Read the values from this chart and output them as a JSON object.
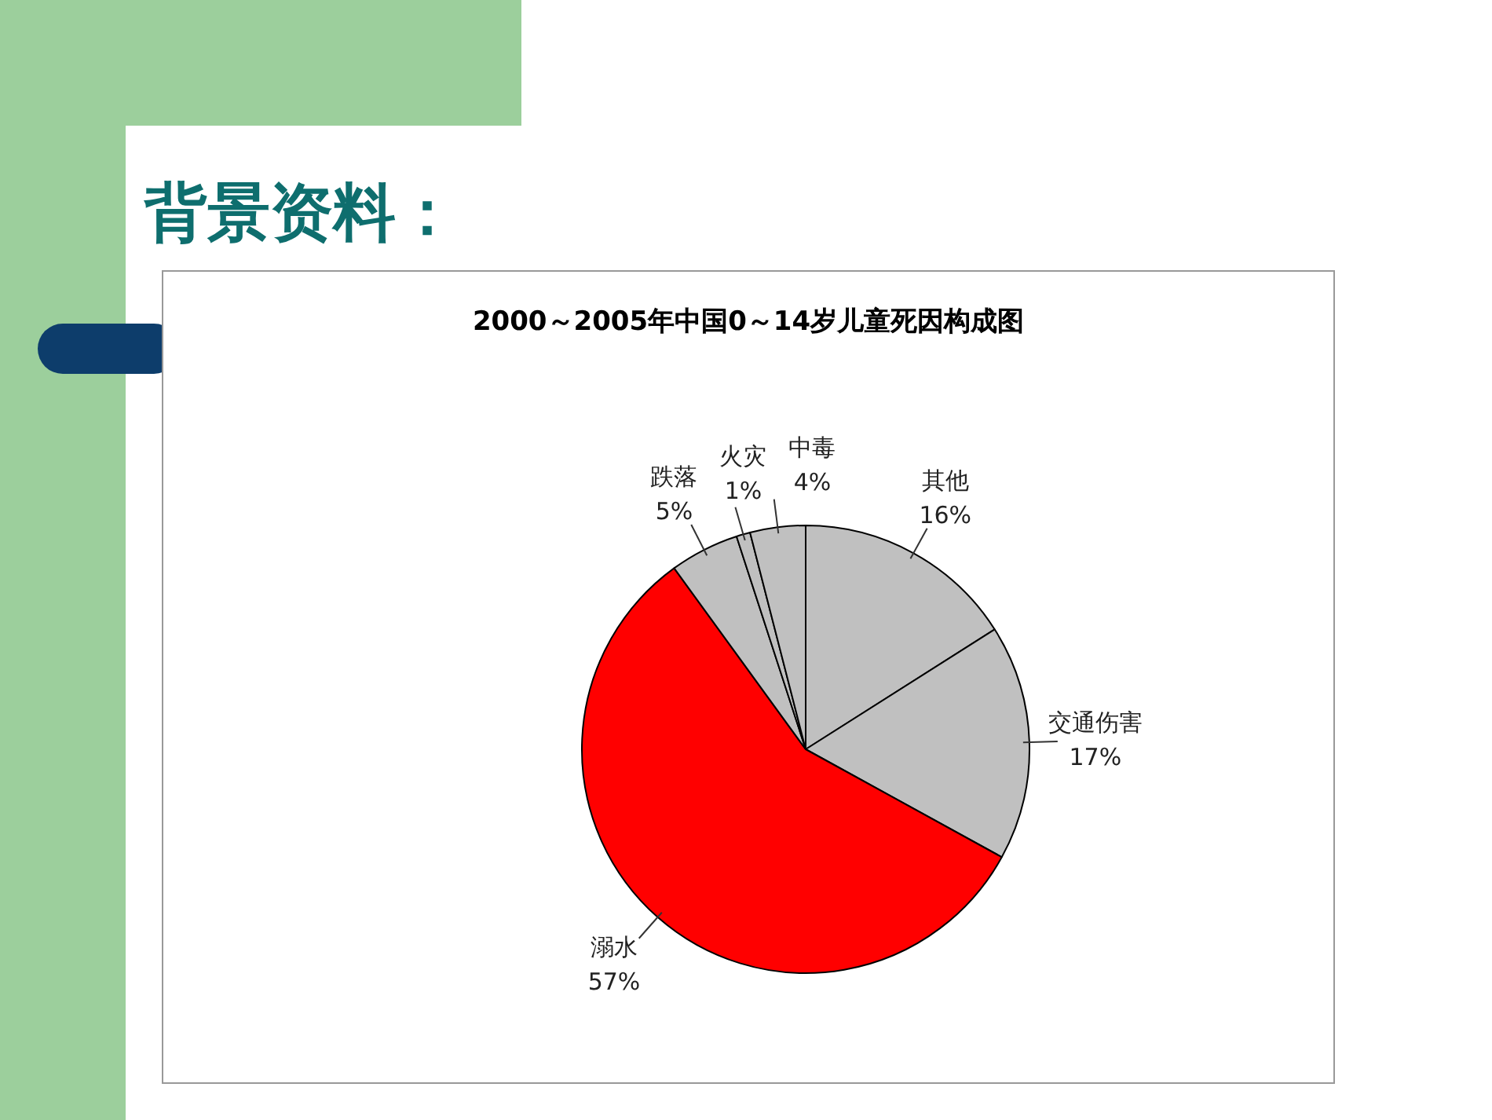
{
  "chart_data": {
    "type": "pie",
    "title": "2000～2005年中国0～14岁儿童死因构成图",
    "categories": [
      "其他",
      "交通伤害",
      "溺水",
      "跌落",
      "火灾",
      "中毒"
    ],
    "values": [
      16,
      17,
      57,
      5,
      1,
      4
    ],
    "value_labels": [
      "16%",
      "17%",
      "57%",
      "5%",
      "1%",
      "4%"
    ],
    "colors": [
      "#c0c0c0",
      "#c0c0c0",
      "#ff0000",
      "#c0c0c0",
      "#c0c0c0",
      "#c0c0c0"
    ],
    "annotations": [
      "背景资料："
    ],
    "legend": false
  }
}
